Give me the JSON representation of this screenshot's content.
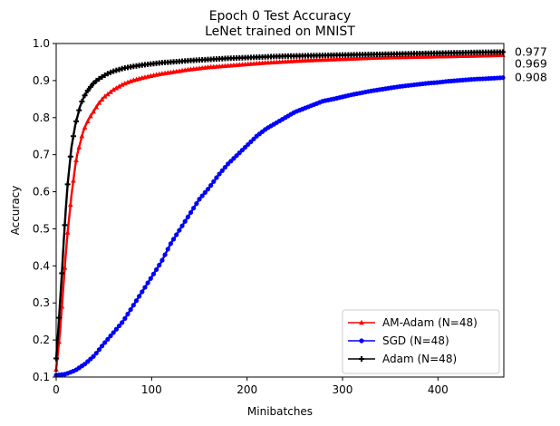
{
  "chart_data": {
    "type": "line",
    "title": "Epoch 0 Test Accuracy",
    "subtitle": "LeNet trained on MNIST",
    "xlabel": "Minibatches",
    "ylabel": "Accuracy",
    "xlim": [
      0,
      469
    ],
    "ylim": [
      0.1,
      1.0
    ],
    "xticks": [
      0,
      100,
      200,
      300,
      400
    ],
    "yticks": [
      0.1,
      0.2,
      0.3,
      0.4,
      0.5,
      0.6,
      0.7,
      0.8,
      0.9,
      1.0
    ],
    "grid": false,
    "legend_position": "bottom-right",
    "series": [
      {
        "name": "AM-Adam (N=48)",
        "color": "#ff0000",
        "marker": "triangle",
        "end_label": "0.969",
        "x": [
          0,
          2,
          4,
          6,
          8,
          10,
          12,
          14,
          16,
          18,
          20,
          22,
          25,
          28,
          31,
          35,
          40,
          45,
          50,
          55,
          60,
          70,
          80,
          90,
          100,
          110,
          120,
          140,
          160,
          180,
          200,
          220,
          240,
          260,
          280,
          300,
          320,
          340,
          360,
          380,
          400,
          420,
          440,
          469
        ],
        "y": [
          0.12,
          0.17,
          0.22,
          0.29,
          0.36,
          0.43,
          0.49,
          0.54,
          0.59,
          0.63,
          0.67,
          0.7,
          0.73,
          0.76,
          0.78,
          0.8,
          0.82,
          0.84,
          0.855,
          0.865,
          0.875,
          0.89,
          0.9,
          0.907,
          0.913,
          0.918,
          0.922,
          0.93,
          0.936,
          0.94,
          0.944,
          0.948,
          0.951,
          0.954,
          0.956,
          0.958,
          0.96,
          0.962,
          0.963,
          0.964,
          0.965,
          0.966,
          0.967,
          0.969
        ]
      },
      {
        "name": "SGD (N=48)",
        "color": "#0000ff",
        "marker": "circle",
        "end_label": "0.908",
        "x": [
          0,
          10,
          20,
          30,
          40,
          50,
          60,
          70,
          80,
          90,
          100,
          110,
          120,
          130,
          140,
          150,
          160,
          170,
          180,
          190,
          200,
          210,
          220,
          230,
          240,
          250,
          260,
          270,
          280,
          290,
          300,
          310,
          320,
          330,
          340,
          350,
          360,
          370,
          380,
          390,
          400,
          410,
          420,
          430,
          440,
          450,
          469
        ],
        "y": [
          0.105,
          0.108,
          0.118,
          0.135,
          0.158,
          0.19,
          0.22,
          0.25,
          0.29,
          0.33,
          0.37,
          0.41,
          0.46,
          0.5,
          0.54,
          0.58,
          0.61,
          0.645,
          0.675,
          0.7,
          0.725,
          0.75,
          0.77,
          0.785,
          0.8,
          0.815,
          0.825,
          0.835,
          0.845,
          0.85,
          0.856,
          0.862,
          0.867,
          0.872,
          0.876,
          0.88,
          0.884,
          0.887,
          0.89,
          0.893,
          0.895,
          0.898,
          0.9,
          0.902,
          0.904,
          0.905,
          0.908
        ]
      },
      {
        "name": "Adam (N=48)",
        "color": "#000000",
        "marker": "plus",
        "end_label": "0.977",
        "x": [
          0,
          2,
          4,
          6,
          8,
          10,
          12,
          14,
          16,
          18,
          20,
          22,
          25,
          28,
          31,
          35,
          40,
          45,
          50,
          55,
          60,
          70,
          80,
          90,
          100,
          110,
          120,
          140,
          160,
          180,
          200,
          220,
          240,
          260,
          280,
          300,
          320,
          340,
          360,
          380,
          400,
          420,
          440,
          469
        ],
        "y": [
          0.15,
          0.22,
          0.3,
          0.38,
          0.47,
          0.55,
          0.62,
          0.67,
          0.72,
          0.75,
          0.78,
          0.8,
          0.83,
          0.85,
          0.865,
          0.88,
          0.895,
          0.905,
          0.913,
          0.92,
          0.925,
          0.933,
          0.938,
          0.942,
          0.945,
          0.948,
          0.95,
          0.954,
          0.957,
          0.96,
          0.962,
          0.964,
          0.966,
          0.967,
          0.968,
          0.969,
          0.97,
          0.971,
          0.972,
          0.973,
          0.974,
          0.975,
          0.976,
          0.977
        ]
      }
    ]
  }
}
